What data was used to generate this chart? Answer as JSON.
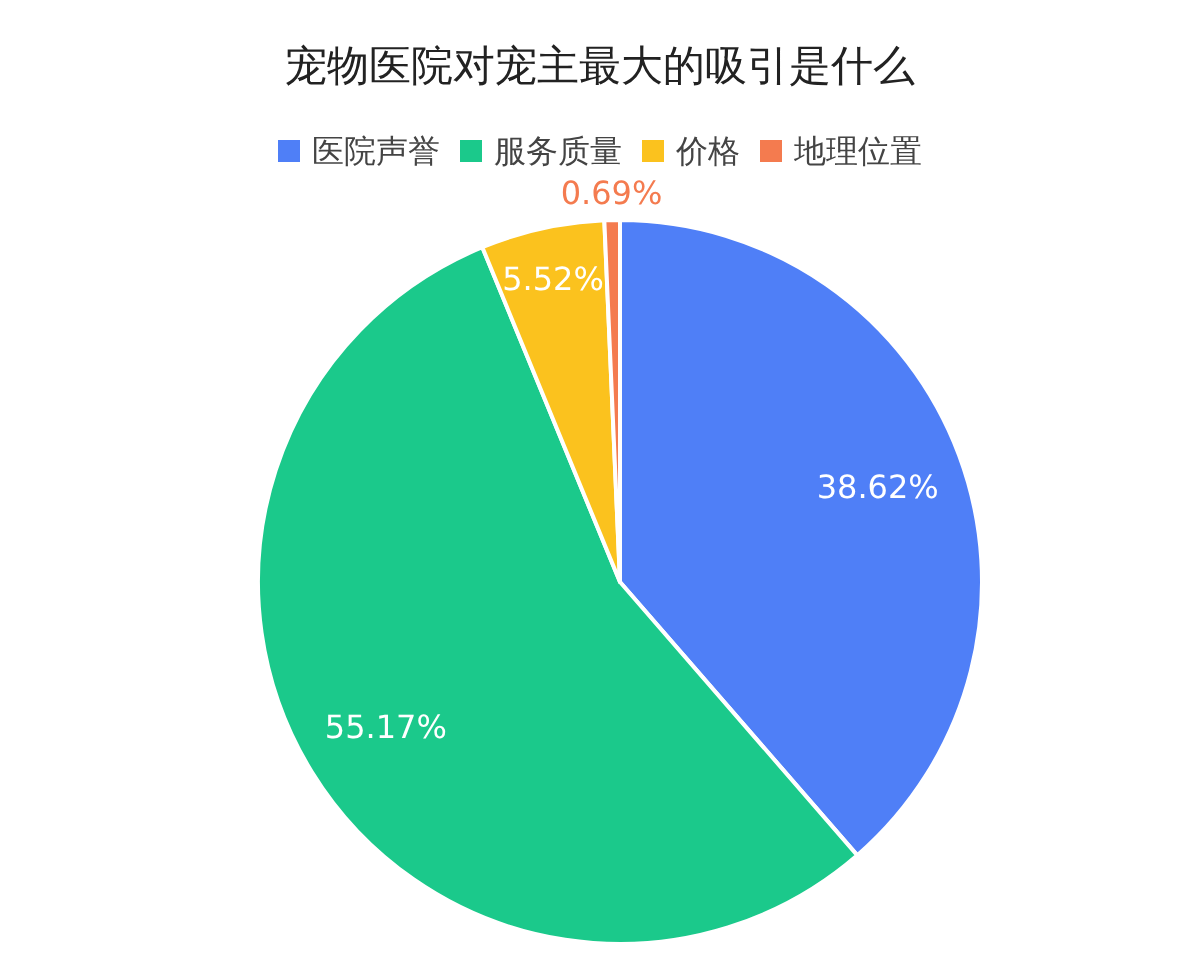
{
  "chart_data": {
    "type": "pie",
    "title": "宠物医院对宠主最大的吸引是什么",
    "categories": [
      "医院声誉",
      "服务质量",
      "价格",
      "地理位置"
    ],
    "values": [
      38.62,
      55.17,
      5.52,
      0.69
    ],
    "value_labels": [
      "38.62%",
      "55.17%",
      "5.52%",
      "0.69%"
    ],
    "colors": [
      "#4f7ff7",
      "#1bc98b",
      "#fbc21e",
      "#f47b4f"
    ],
    "legend": "top"
  }
}
